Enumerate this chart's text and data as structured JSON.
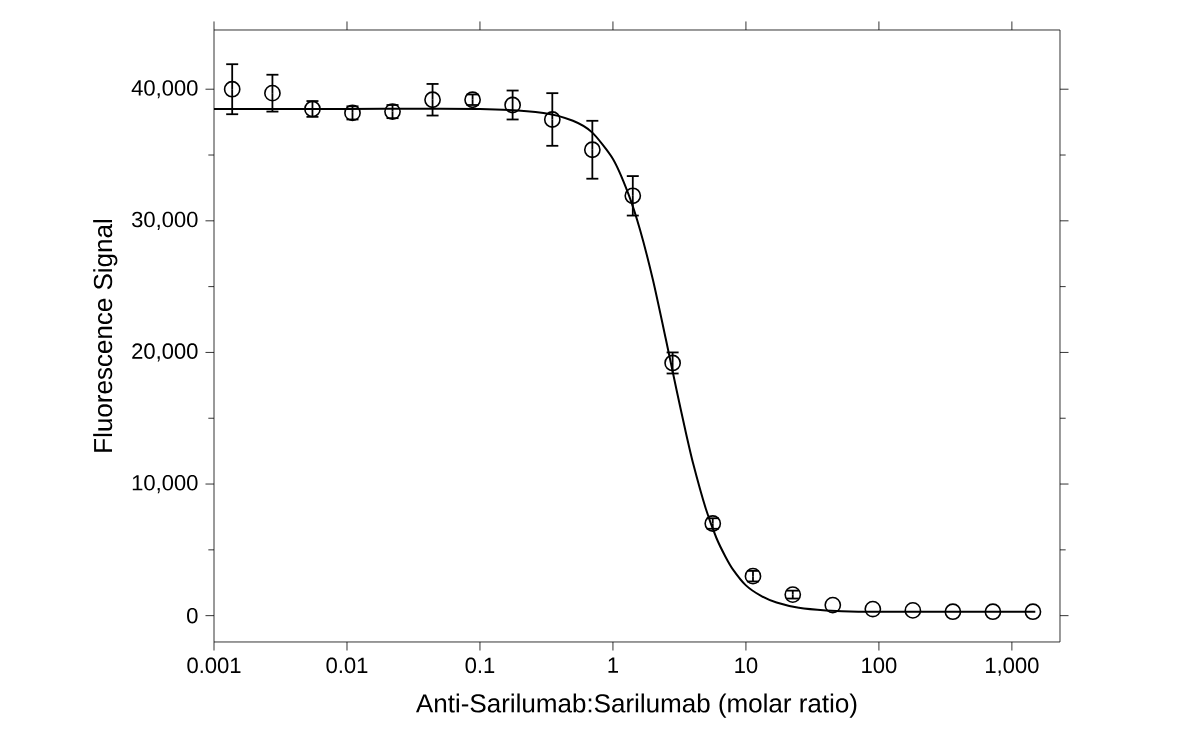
{
  "chart_data": {
    "type": "scatter",
    "xlabel": "Anti-Sarilumab:Sarilumab (molar ratio)",
    "ylabel": "Fluorescence Signal",
    "log": "x",
    "grid": false,
    "marker": "circle",
    "xlim": [
      0.001,
      2300
    ],
    "ylim": [
      -2000,
      44500
    ],
    "xticks": [
      0.001,
      0.01,
      0.1,
      1,
      10,
      100,
      {
        "value": 1000,
        "label": "1,000"
      }
    ],
    "yticks": [
      0,
      {
        "value": 10000,
        "label": "10,000"
      },
      {
        "value": 20000,
        "label": "20,000"
      },
      {
        "value": 30000,
        "label": "30,000"
      },
      {
        "value": 40000,
        "label": "40,000"
      }
    ],
    "series": [
      {
        "color": "#000000",
        "x": [
          0.00137,
          0.00275,
          0.0055,
          0.011,
          0.022,
          0.044,
          0.088,
          0.176,
          0.35,
          0.7,
          1.41,
          2.81,
          5.63,
          11.3,
          22.5,
          45,
          90,
          180,
          360,
          720,
          1440
        ],
        "values": [
          40000,
          39700,
          38500,
          38200,
          38300,
          39200,
          39200,
          38800,
          37700,
          35400,
          31900,
          19200,
          7000,
          3000,
          1600,
          800,
          500,
          400,
          300,
          300,
          300
        ],
        "errors": [
          1900,
          1400,
          600,
          500,
          500,
          1200,
          400,
          1100,
          2000,
          2200,
          1500,
          800,
          400,
          400,
          300,
          null,
          null,
          null,
          null,
          null,
          null
        ]
      },
      {
        "type": "line",
        "color": "#000000",
        "marker": "none",
        "x": [
          0.001,
          0.01,
          0.1,
          0.3,
          0.5,
          0.7,
          1,
          1.3,
          1.6,
          2,
          2.5,
          3,
          3.5,
          4,
          5,
          6,
          7,
          8,
          10,
          13,
          17,
          25,
          40,
          70,
          150,
          400,
          1500
        ],
        "values": [
          38500,
          38500,
          38500,
          38200,
          37600,
          36700,
          34700,
          32100,
          29300,
          25500,
          21000,
          17200,
          14100,
          11600,
          8100,
          5900,
          4500,
          3500,
          2300,
          1500,
          1000,
          600,
          400,
          300,
          300,
          300,
          300
        ]
      }
    ]
  }
}
